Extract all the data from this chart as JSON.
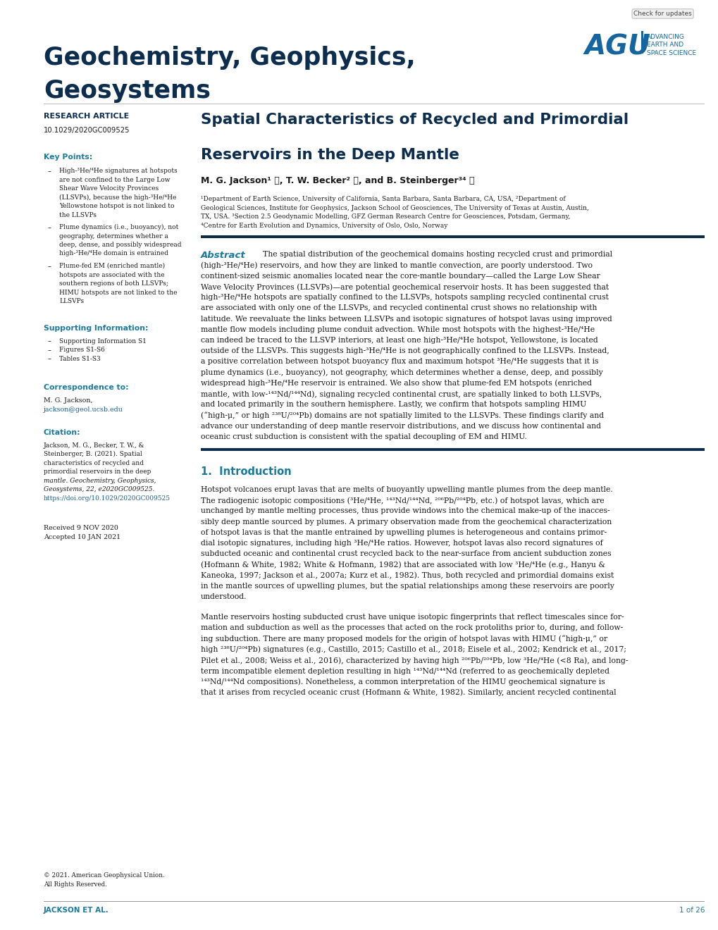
{
  "journal_name_line1": "Geochemistry, Geophysics,",
  "journal_name_line2": "Geosystems",
  "article_type": "RESEARCH ARTICLE",
  "doi": "10.1029/2020GC009525",
  "paper_title_line1": "Spatial Characteristics of Recycled and Primordial",
  "paper_title_line2": "Reservoirs in the Deep Mantle",
  "authors": "M. G. Jackson¹ Ⓨ, T. W. Becker² Ⓨ, and B. Steinberger³⁴ Ⓨ",
  "affil1": "¹Department of Earth Science, University of California, Santa Barbara, Santa Barbara, CA, USA, ²Department of",
  "affil2": "Geological Sciences, Institute for Geophysics, Jackson School of Geosciences, The University of Texas at Austin, Austin,",
  "affil3": "TX, USA. ³Section 2.5 Geodynamic Modelling, GFZ German Research Centre for Geosciences, Potsdam, Germany,",
  "affil4": "⁴Centre for Earth Evolution and Dynamics, University of Oslo, Oslo, Norway",
  "abstract_label": "Abstract",
  "abstract_lines": [
    "The spatial distribution of the geochemical domains hosting recycled crust and primordial",
    "(high-³He/⁴He) reservoirs, and how they are linked to mantle convection, are poorly understood. Two",
    "continent-sized seismic anomalies located near the core-mantle boundary—called the Large Low Shear",
    "Wave Velocity Provinces (LLSVPs)—are potential geochemical reservoir hosts. It has been suggested that",
    "high-³He/⁴He hotspots are spatially confined to the LLSVPs, hotspots sampling recycled continental crust",
    "are associated with only one of the LLSVPs, and recycled continental crust shows no relationship with",
    "latitude. We reevaluate the links between LLSVPs and isotopic signatures of hotspot lavas using improved",
    "mantle flow models including plume conduit advection. While most hotspots with the highest-³He/⁴He",
    "can indeed be traced to the LLSVP interiors, at least one high-³He/⁴He hotspot, Yellowstone, is located",
    "outside of the LLSVPs. This suggests high-³He/⁴He is not geographically confined to the LLSVPs. Instead,",
    "a positive correlation between hotspot buoyancy flux and maximum hotspot ³He/⁴He suggests that it is",
    "plume dynamics (i.e., buoyancy), not geography, which determines whether a dense, deep, and possibly",
    "widespread high-³He/⁴He reservoir is entrained. We also show that plume-fed EM hotspots (enriched",
    "mantle, with low-¹⁴³Nd/¹⁴⁴Nd), signaling recycled continental crust, are spatially linked to both LLSVPs,",
    "and located primarily in the southern hemisphere. Lastly, we confirm that hotspots sampling HIMU",
    "(“high-μ,” or high ²³⁸U/²⁰⁴Pb) domains are not spatially limited to the LLSVPs. These findings clarify and",
    "advance our understanding of deep mantle reservoir distributions, and we discuss how continental and",
    "oceanic crust subduction is consistent with the spatial decoupling of EM and HIMU."
  ],
  "intro_title": "1.  Introduction",
  "intro_lines": [
    "Hotspot volcanoes erupt lavas that are melts of buoyantly upwelling mantle plumes from the deep mantle.",
    "The radiogenic isotopic compositions (³He/⁴He, ¹⁴³Nd/¹⁴⁴Nd, ²⁰⁶Pb/²⁰⁴Pb, etc.) of hotspot lavas, which are",
    "unchanged by mantle melting processes, thus provide windows into the chemical make-up of the inacces-",
    "sibly deep mantle sourced by plumes. A primary observation made from the geochemical characterization",
    "of hotspot lavas is that the mantle entrained by upwelling plumes is heterogeneous and contains primor-",
    "dial isotopic signatures, including high ³He/⁴He ratios. However, hotspot lavas also record signatures of",
    "subducted oceanic and continental crust recycled back to the near-surface from ancient subduction zones",
    "(Hofmann & White, 1982; White & Hofmann, 1982) that are associated with low ³He/⁴He (e.g., Hanyu &",
    "Kaneoka, 1997; Jackson et al., 2007a; Kurz et al., 1982). Thus, both recycled and primordial domains exist",
    "in the mantle sources of upwelling plumes, but the spatial relationships among these reservoirs are poorly",
    "understood."
  ],
  "intro2_lines": [
    "Mantle reservoirs hosting subducted crust have unique isotopic fingerprints that reflect timescales since for-",
    "mation and subduction as well as the processes that acted on the rock protoliths prior to, during, and follow-",
    "ing subduction. There are many proposed models for the origin of hotspot lavas with HIMU (“high-μ,” or",
    "high ²³⁸U/²⁰⁴Pb) signatures (e.g., Castillo, 2015; Castillo et al., 2018; Eisele et al., 2002; Kendrick et al., 2017;",
    "Pilet et al., 2008; Weiss et al., 2016), characterized by having high ²⁰⁶Pb/²⁰⁴Pb, low ³He/⁴He (<8 Ra), and long-",
    "term incompatible element depletion resulting in high ¹⁴³Nd/¹⁴⁴Nd (referred to as geochemically depleted",
    "¹⁴³Nd/¹⁴⁴Nd compositions). Nonetheless, a common interpretation of the HIMU geochemical signature is",
    "that it arises from recycled oceanic crust (Hofmann & White, 1982). Similarly, ancient recycled continental"
  ],
  "kp_title": "Key Points:",
  "kp1_lines": [
    "High-³He/⁴He signatures at hotspots",
    "are not confined to the Large Low",
    "Shear Wave Velocity Provinces",
    "(LLSVPs), because the high-³He/⁴He",
    "Yellowstone hotspot is not linked to",
    "the LLSVPs"
  ],
  "kp2_lines": [
    "Plume dynamics (i.e., buoyancy), not",
    "geography, determines whether a",
    "deep, dense, and possibly widespread",
    "high-³He/⁴He domain is entrained"
  ],
  "kp3_lines": [
    "Plume-fed EM (enriched mantle)",
    "hotspots are associated with the",
    "southern regions of both LLSVPs;",
    "HIMU hotspots are not linked to the",
    "LLSVPs"
  ],
  "si_title": "Supporting Information:",
  "si_items": [
    "Supporting Information S1",
    "Figures S1-S6",
    "Tables S1-S3"
  ],
  "corr_title": "Correspondence to:",
  "corr_name": "M. G. Jackson,",
  "corr_email": "jackson@geol.ucsb.edu",
  "cit_title": "Citation:",
  "cit_lines": [
    "Jackson, M. G., Becker, T. W., &",
    "Steinberger, B. (2021). Spatial",
    "characteristics of recycled and",
    "primordial reservoirs in the deep",
    "mantle. Geochemistry, Geophysics,",
    "Geosystems, 22, e2020GC009525.",
    "https://doi.org/10.1029/2020GC009525"
  ],
  "cit_italic_lines": [
    4,
    5
  ],
  "received": "Received 9 NOV 2020",
  "accepted": "Accepted 10 JAN 2021",
  "copyright": "© 2021. American Geophysical Union.",
  "copyright2": "All Rights Reserved.",
  "footer_left": "JACKSON ET AL.",
  "footer_right": "1 of 26",
  "col1_dark_blue": "#0d2d4e",
  "medium_blue": "#1565a0",
  "link_blue": "#1a5f96",
  "teal": "#1a7a9e",
  "body_dark": "#1a1a1a",
  "divider_navy": "#0d2d4e",
  "bg": "#ffffff",
  "footer_teal": "#1a7a9e"
}
